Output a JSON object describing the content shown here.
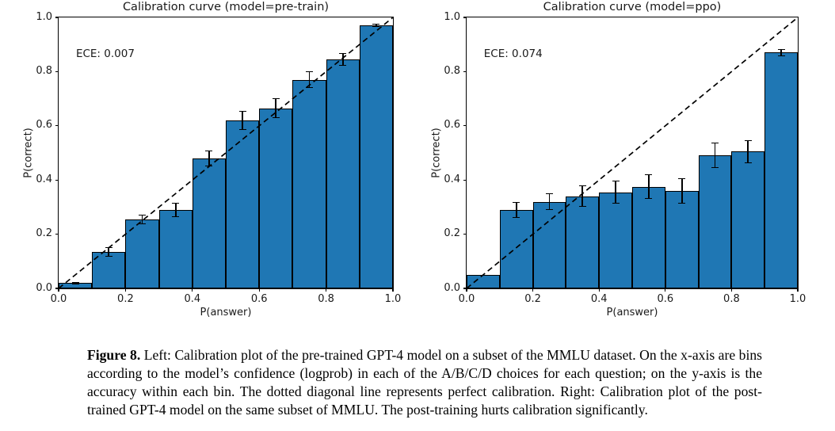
{
  "colors": {
    "bar_fill": "#1f77b4",
    "bar_edge": "#000000",
    "diagonal_line": "#000000"
  },
  "chart_data": [
    {
      "type": "bar",
      "title": "Calibration curve (model=pre-train)",
      "annotation": "ECE: 0.007",
      "xlabel": "P(answer)",
      "ylabel": "P(correct)",
      "xlim": [
        0.0,
        1.0
      ],
      "ylim": [
        0.0,
        1.0
      ],
      "x_ticks": [
        "0.0",
        "0.2",
        "0.4",
        "0.6",
        "0.8",
        "1.0"
      ],
      "y_ticks": [
        "0.0",
        "0.2",
        "0.4",
        "0.6",
        "0.8",
        "1.0"
      ],
      "grid": false,
      "diagonal_reference_line": true,
      "bin_edges": [
        0.0,
        0.1,
        0.2,
        0.3,
        0.4,
        0.5,
        0.6,
        0.7,
        0.8,
        0.9,
        1.0
      ],
      "values": [
        0.02,
        0.135,
        0.255,
        0.29,
        0.48,
        0.62,
        0.665,
        0.77,
        0.845,
        0.97
      ],
      "errors": [
        0.004,
        0.017,
        0.017,
        0.027,
        0.03,
        0.034,
        0.036,
        0.03,
        0.022,
        0.006
      ]
    },
    {
      "type": "bar",
      "title": "Calibration curve (model=ppo)",
      "annotation": "ECE: 0.074",
      "xlabel": "P(answer)",
      "ylabel": "P(correct)",
      "xlim": [
        0.0,
        1.0
      ],
      "ylim": [
        0.0,
        1.0
      ],
      "x_ticks": [
        "0.0",
        "0.2",
        "0.4",
        "0.6",
        "0.8",
        "1.0"
      ],
      "y_ticks": [
        "0.0",
        "0.2",
        "0.4",
        "0.6",
        "0.8",
        "1.0"
      ],
      "grid": false,
      "diagonal_reference_line": true,
      "bin_edges": [
        0.0,
        0.1,
        0.2,
        0.3,
        0.4,
        0.5,
        0.6,
        0.7,
        0.8,
        0.9,
        1.0
      ],
      "values": [
        0.05,
        0.29,
        0.32,
        0.34,
        0.355,
        0.375,
        0.36,
        0.49,
        0.505,
        0.87
      ],
      "errors": [
        0,
        0.03,
        0.032,
        0.04,
        0.042,
        0.046,
        0.046,
        0.047,
        0.042,
        0.012
      ]
    }
  ],
  "caption": {
    "label": "Figure 8.",
    "text": "Left: Calibration plot of the pre-trained GPT-4 model on a subset of the MMLU dataset. On the x-axis are bins according to the model’s confidence (logprob) in each of the A/B/C/D choices for each question; on the y-axis is the accuracy within each bin. The dotted diagonal line represents perfect calibration. Right: Calibration plot of the post-trained GPT-4 model on the same subset of MMLU. The post-training hurts calibration significantly."
  }
}
